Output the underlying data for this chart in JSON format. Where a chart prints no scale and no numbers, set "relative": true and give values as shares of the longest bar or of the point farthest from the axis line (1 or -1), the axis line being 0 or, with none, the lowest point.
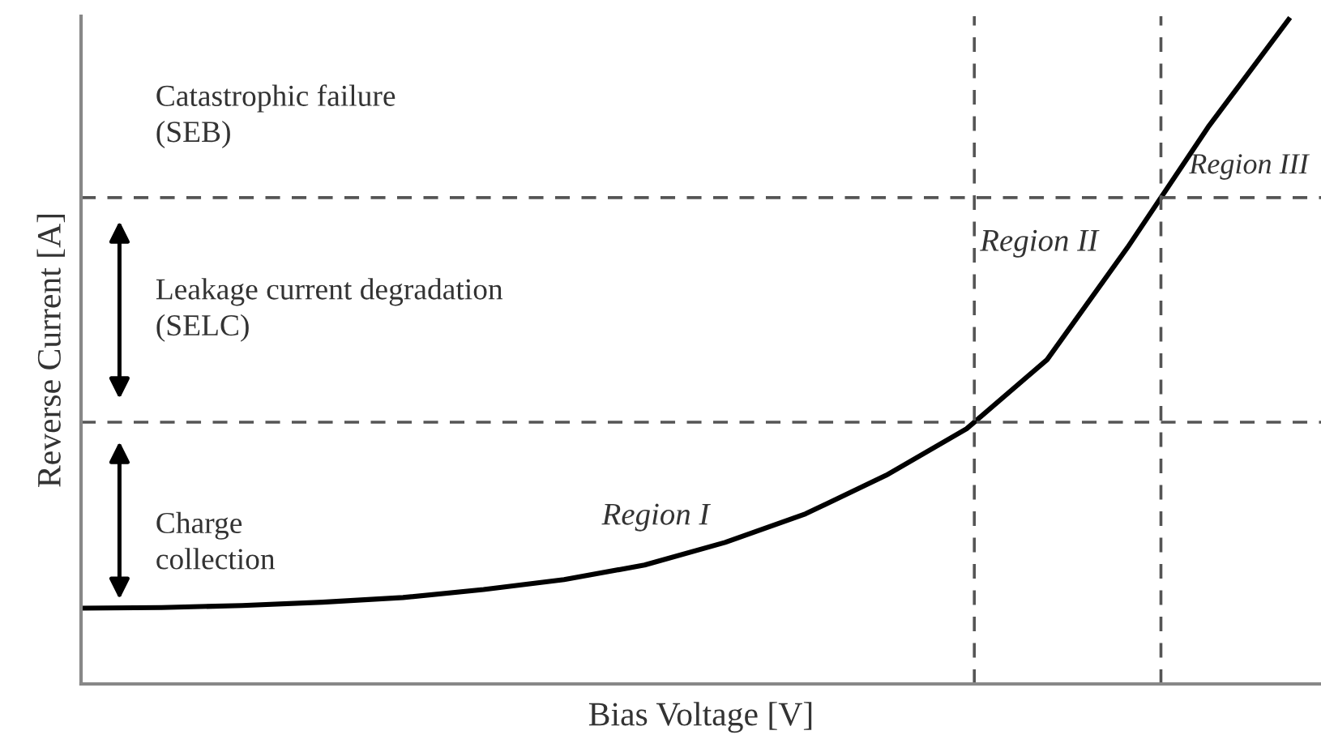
{
  "chart_data": {
    "type": "line",
    "relative": true,
    "xlabel": "Bias Voltage [V]",
    "ylabel": "Reverse Current [A]",
    "categories": [
      null,
      null,
      null,
      null,
      null,
      null,
      null,
      null,
      null,
      null,
      null,
      null,
      null,
      null,
      null,
      null
    ],
    "series": [
      {
        "color": "#000000",
        "values": [
          0.114,
          0.115,
          0.118,
          0.123,
          0.13,
          0.142,
          0.157,
          0.179,
          0.213,
          0.256,
          0.314,
          0.384,
          0.488,
          0.657,
          0.838,
          1.0
        ]
      }
    ],
    "ref_lines": [
      {
        "axis": "y",
        "value": 0.394,
        "color": "#555555",
        "line_style": "dashed"
      },
      {
        "axis": "y",
        "value": 0.732,
        "color": "#555555",
        "line_style": "dashed"
      }
    ],
    "annotations": [
      "Catastrophic failure\n(SEB)",
      "Leakage current degradation\n(SELC)",
      "Charge\ncollection",
      "Region I",
      "Region II",
      "Region III"
    ],
    "legend": false,
    "marker": "none",
    "line_style": "solid"
  }
}
